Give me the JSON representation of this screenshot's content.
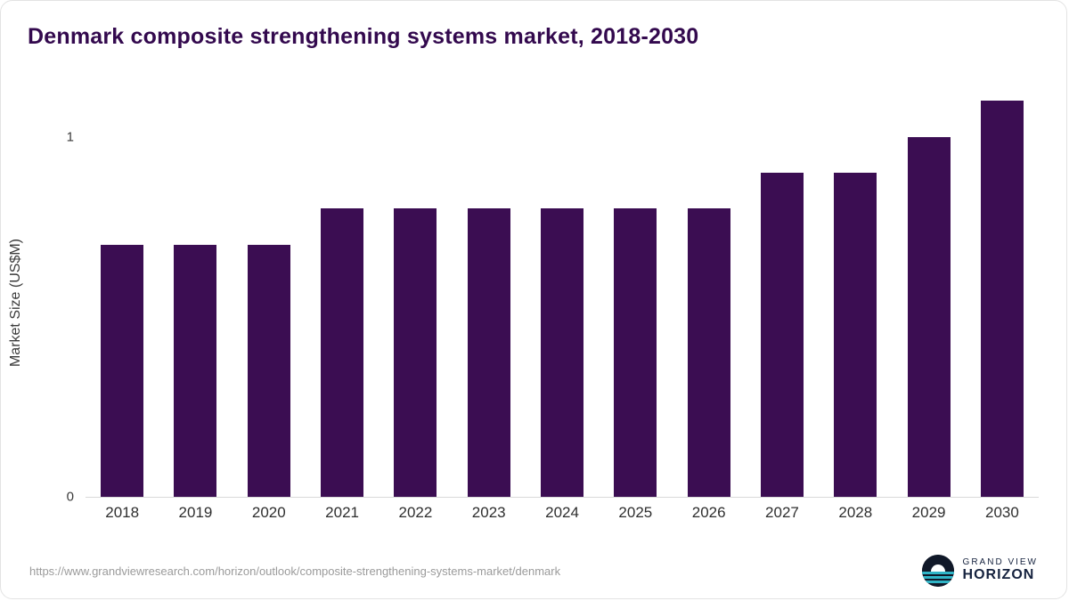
{
  "title": "Denmark composite strengthening systems market, 2018-2030",
  "colors": {
    "bar": "#3b0d52",
    "title": "#33094e",
    "axis_line": "#d9d9d9",
    "tick_text": "#3a3a3a",
    "url_text": "#9b9b9b",
    "logo_dark": "#101828",
    "logo_teal": "#2fb4c6"
  },
  "footer": {
    "source_url": "https://www.grandviewresearch.com/horizon/outlook/composite-strengthening-systems-market/denmark"
  },
  "logo": {
    "line1": "GRAND VIEW",
    "line2": "HORIZON"
  },
  "chart_data": {
    "type": "bar",
    "title": "Denmark composite strengthening systems market, 2018-2030",
    "xlabel": "",
    "ylabel": "Market Size (US$M)",
    "categories": [
      "2018",
      "2019",
      "2020",
      "2021",
      "2022",
      "2023",
      "2024",
      "2025",
      "2026",
      "2027",
      "2028",
      "2029",
      "2030"
    ],
    "values": [
      0.7,
      0.7,
      0.7,
      0.8,
      0.8,
      0.8,
      0.8,
      0.8,
      0.8,
      0.9,
      0.9,
      1.0,
      1.1
    ],
    "ylim": [
      0,
      1.13
    ],
    "yticks": [
      0,
      1
    ],
    "grid": false,
    "legend": false,
    "bar_color": "#3b0d52"
  }
}
